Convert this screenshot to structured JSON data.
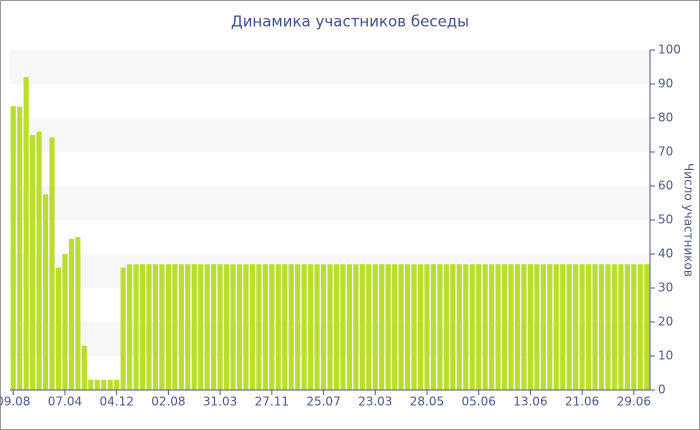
{
  "chart_data": {
    "type": "bar",
    "title": "Динамика участников беседы",
    "y_axis_label": "Число участников",
    "categories": [
      "09.08",
      null,
      null,
      null,
      null,
      null,
      null,
      null,
      "07.04",
      null,
      null,
      null,
      null,
      null,
      null,
      null,
      "04.12",
      null,
      null,
      null,
      null,
      null,
      null,
      null,
      "02.08",
      null,
      null,
      null,
      null,
      null,
      null,
      null,
      "31.03",
      null,
      null,
      null,
      null,
      null,
      null,
      null,
      "27.11",
      null,
      null,
      null,
      null,
      null,
      null,
      null,
      "25.07",
      null,
      null,
      null,
      null,
      null,
      null,
      null,
      "23.03",
      null,
      null,
      null,
      null,
      null,
      null,
      null,
      "28.05",
      null,
      null,
      null,
      null,
      null,
      null,
      null,
      "05.06",
      null,
      null,
      null,
      null,
      null,
      null,
      null,
      "13.06",
      null,
      null,
      null,
      null,
      null,
      null,
      null,
      "21.06",
      null,
      null,
      null,
      null,
      null,
      null,
      null,
      "29.06",
      null,
      null
    ],
    "values": [
      83.5,
      83.3,
      92,
      75,
      76,
      57.5,
      74.3,
      36,
      40,
      44.5,
      45,
      13,
      3,
      3,
      3,
      3,
      3,
      36,
      37,
      37,
      37,
      37,
      37,
      37,
      37,
      37,
      37,
      37,
      37,
      37,
      37,
      37,
      37,
      37,
      37,
      37,
      37,
      37,
      37,
      37,
      37,
      37,
      37,
      37,
      37,
      37,
      37,
      37,
      37,
      37,
      37,
      37,
      37,
      37,
      37,
      37,
      37,
      37,
      37,
      37,
      37,
      37,
      37,
      37,
      37,
      37,
      37,
      37,
      37,
      37,
      37,
      37,
      37,
      37,
      37,
      37,
      37,
      37,
      37,
      37,
      37,
      37,
      37,
      37,
      37,
      37,
      37,
      37,
      37,
      37,
      37,
      37,
      37,
      37,
      37,
      37,
      37,
      37,
      37
    ],
    "color": "#bade2e",
    "band_color": "#f7f7f7",
    "ylim": [
      0,
      100
    ],
    "yticks": [
      0,
      10,
      20,
      30,
      40,
      50,
      60,
      70,
      80,
      90,
      100
    ],
    "y_axis_side": "right",
    "alternate_bands": true
  }
}
